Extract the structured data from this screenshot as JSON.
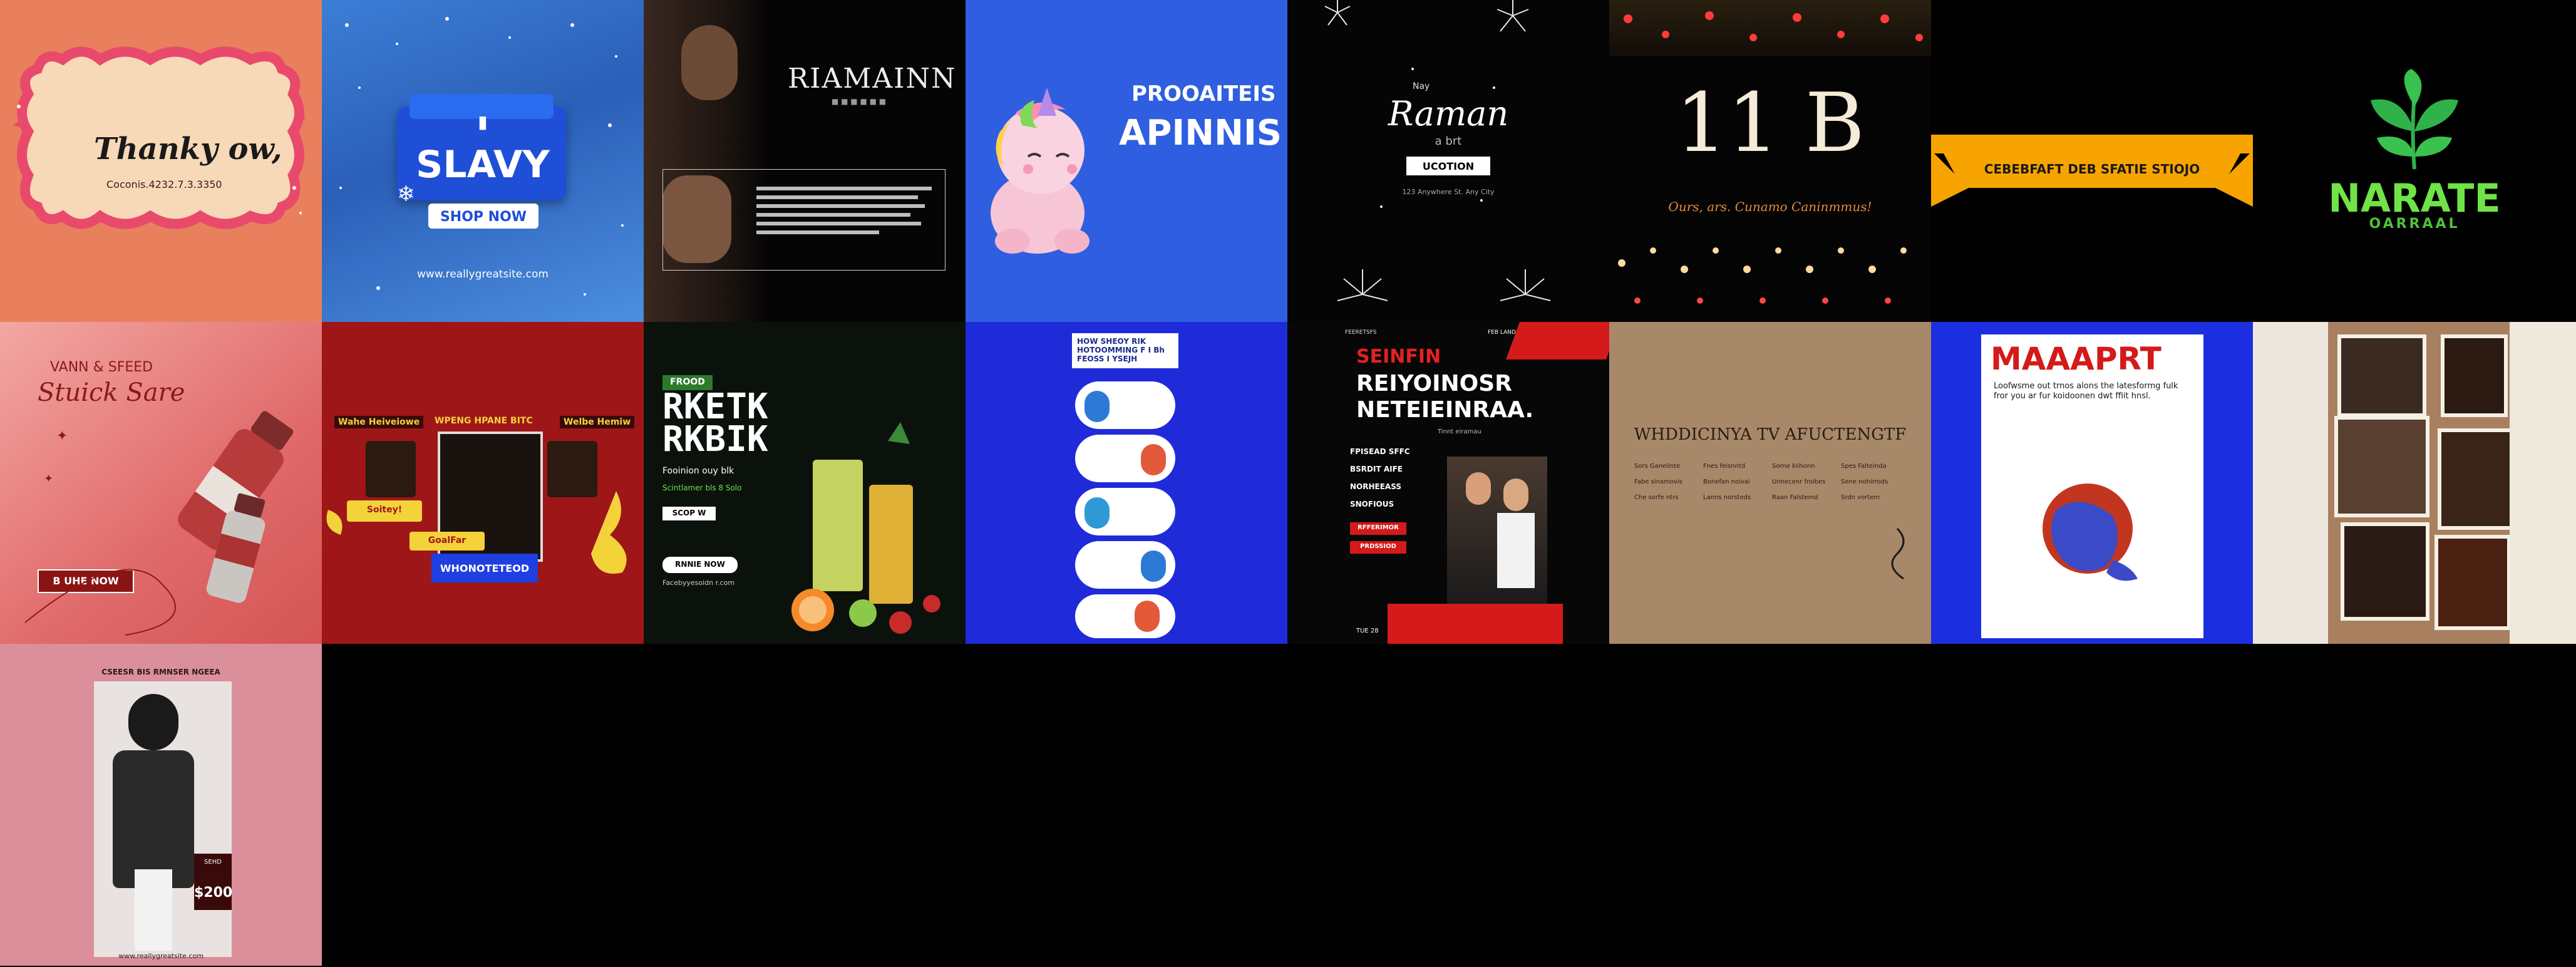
{
  "tiles": {
    "t1": {
      "title": "Thanky ow,",
      "subtitle": "Coconis.4232.7.3.3350"
    },
    "t2": {
      "badge": "▮",
      "title": "SLAVY",
      "button": "SHOP NOW",
      "footer": "www.reallygreatsite.com"
    },
    "t3": {
      "title": "RIAMAINN",
      "subtitle": "■ ■ ■ ■ ■ ■"
    },
    "t4": {
      "line1": "PROOAITEIS",
      "line2": "APINNIS"
    },
    "t5": {
      "small": "Nay",
      "script": "Raman",
      "script2": "a brt",
      "label": "UCOTION",
      "tiny": "123 Anywhere St. Any City"
    },
    "t6": {
      "number": "11 B",
      "caption": "Ours, ars. Cunamo Caninmmus!"
    },
    "t7": {
      "banner": "CEBEBFAFT DEB SFATIE STIOJO"
    },
    "t8": {
      "title": "NARATE",
      "subtitle": "OARRAAL"
    },
    "t9": {
      "line1": "VANN & SFEED",
      "line2": "Stuick Sare",
      "button": "B UHE NOW"
    },
    "t10": {
      "left": "Wahe Heiveiowe",
      "center": "WPENG HPANE BITC",
      "right": "Welbe Hemiw",
      "sticker1": "Soitey!",
      "sticker2": "GoalFar",
      "button": "WHONOTETEOD"
    },
    "t11": {
      "badge": "FROOD",
      "title": "RKETK RKBIK",
      "subtitle": "Fooinion ouy blk",
      "desc": "Scintlamer bls 8 Solo",
      "btn1": "SCOP W",
      "btn2": "RNNIE NOW",
      "footer": "Facebyyesoidn r.com"
    },
    "t12": {
      "header": "HOW SHEOY RIK HOTOOMMING F I Bh FEOSS I YSEJH"
    },
    "t13": {
      "top_left": "FEERETSFS",
      "top_right": "FEB LAND",
      "title1": "SEINFIN",
      "title2": "REIYOINOSR",
      "title3": "NETEIEINRAA.",
      "sub": "Tinnt eiramau",
      "items": [
        "FPISEAD SFFC",
        "BSRDIT AIFE",
        "NORHEEASS",
        "SNOFIOUS"
      ],
      "date": "RFFERIMOR",
      "tag": "PRDSSIOD",
      "footer": "TUE 28"
    },
    "t14": {
      "title": "WHDDICINYA TV AFUCTENGTF",
      "cols": [
        [
          "Sors Ganelinte",
          "Fabe sinamovis",
          "Che sorfe ntrs"
        ],
        [
          "Fnes feisnntd",
          "Bonefan noivai",
          "Lanns norsteds"
        ],
        [
          "Sorne kiihonn",
          "Unnecenr froibes",
          "Raan Falstemd"
        ],
        [
          "Spes Falteinda",
          "Sene nohirrods",
          "Srdn vortem"
        ]
      ]
    },
    "t15": {
      "title": "MAAAPRT",
      "body": "Loofwsme out trnos alons the latesformg fulk fror you ar fur koidoonen dwt ffiit hnsl."
    },
    "t16": {
      "note": ""
    },
    "t17": {
      "heading": "CSEESR BIS RMNSER NGEEA",
      "price_label": "SEHD",
      "price": "$200",
      "footer": "www.reallygreatsite.com"
    }
  },
  "colors": {
    "coral": "#e8805e",
    "blue": "#2f5fe0",
    "royal": "#1c2fe0",
    "red": "#9e1618",
    "green": "#5bd43a",
    "orange": "#f7a400"
  }
}
